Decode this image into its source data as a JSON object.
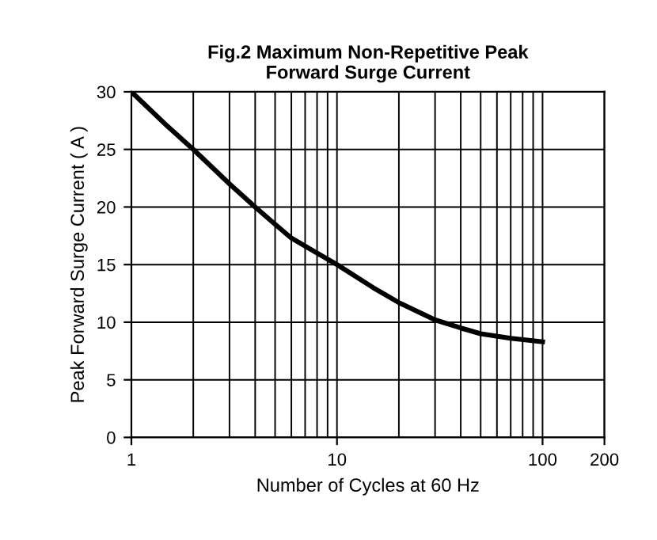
{
  "chart_data": {
    "type": "line",
    "title": "Fig.2 Maximum Non-Repetitive Peak\nForward Surge Current",
    "xlabel": "Number of Cycles at 60 Hz",
    "ylabel": "Peak Forward Surge Current ( A )",
    "series": [
      {
        "color": "#000000",
        "x": [
          1,
          1.5,
          2,
          3,
          4,
          5,
          6,
          8,
          10,
          15,
          20,
          30,
          40,
          50,
          70,
          100
        ],
        "values": [
          30,
          27,
          25,
          22,
          20,
          18.5,
          17.3,
          16,
          15,
          13,
          11.7,
          10.2,
          9.5,
          9,
          8.6,
          8.3
        ]
      }
    ],
    "log": "x",
    "xlim": [
      1,
      200
    ],
    "xticks": [
      1,
      10,
      100,
      200
    ],
    "ylim": [
      0,
      30
    ],
    "yticks": [
      0,
      5,
      10,
      15,
      20,
      25,
      30
    ],
    "grid": true,
    "marker": "none",
    "line_style": "solid"
  }
}
